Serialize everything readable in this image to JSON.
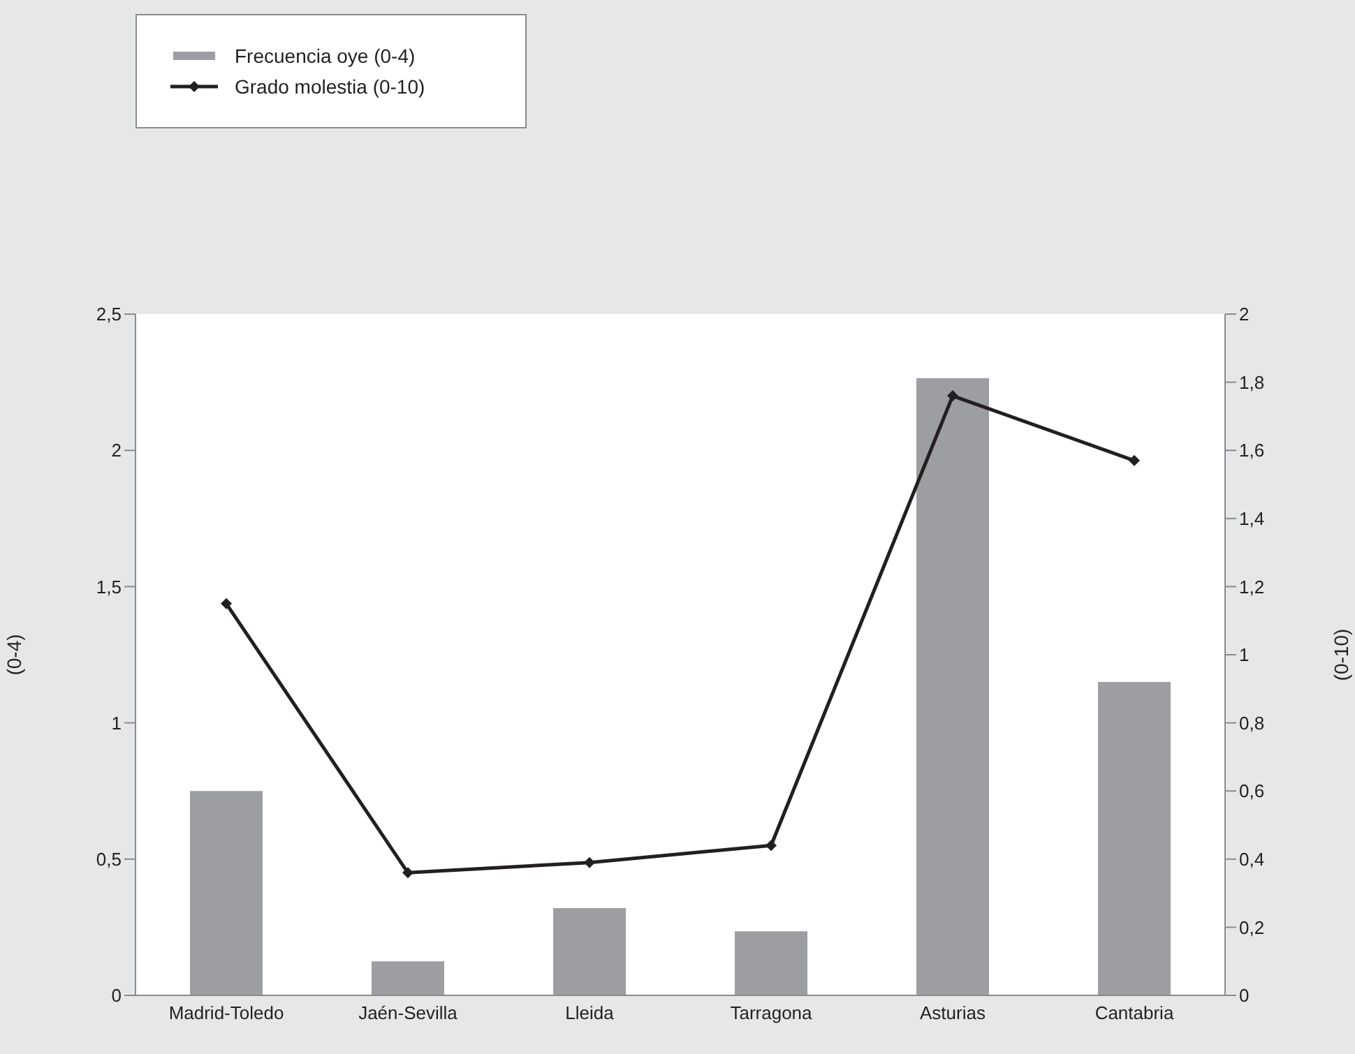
{
  "chart_data": {
    "type": "bar",
    "categories": [
      "Madrid-Toledo",
      "Jaén-Sevilla",
      "Lleida",
      "Tarragona",
      "Asturias",
      "Cantabria"
    ],
    "ylabel": "(0-4)",
    "y2label": "(0-10)",
    "series": [
      {
        "name": "Frecuencia oye (0-4)",
        "color": "#9d9ea2",
        "values": [
          0.75,
          0.125,
          0.32,
          0.235,
          2.265,
          1.15
        ]
      },
      {
        "name": "Grado molestia (0-10)",
        "type": "line",
        "axis": "y2",
        "color": "#231f20",
        "marker": "diamond",
        "values": [
          1.15,
          0.36,
          0.39,
          0.44,
          1.76,
          1.57
        ]
      }
    ],
    "ylim": [
      0,
      2.5
    ],
    "yticks": [
      0,
      {
        "value": 0.5,
        "label": "0,5"
      },
      1,
      {
        "value": 1.5,
        "label": "1,5"
      },
      2,
      {
        "value": 2.5,
        "label": "2,5"
      }
    ],
    "y2lim": [
      0,
      2
    ],
    "y2ticks": [
      0,
      {
        "value": 0.2,
        "label": "0,2"
      },
      {
        "value": 0.4,
        "label": "0,4"
      },
      {
        "value": 0.6,
        "label": "0,6"
      },
      {
        "value": 0.8,
        "label": "0,8"
      },
      1,
      {
        "value": 1.2,
        "label": "1,2"
      },
      {
        "value": 1.4,
        "label": "1,4"
      },
      {
        "value": 1.6,
        "label": "1,6"
      },
      {
        "value": 1.8,
        "label": "1,8"
      },
      2
    ],
    "grid": false,
    "legend": "top left"
  }
}
